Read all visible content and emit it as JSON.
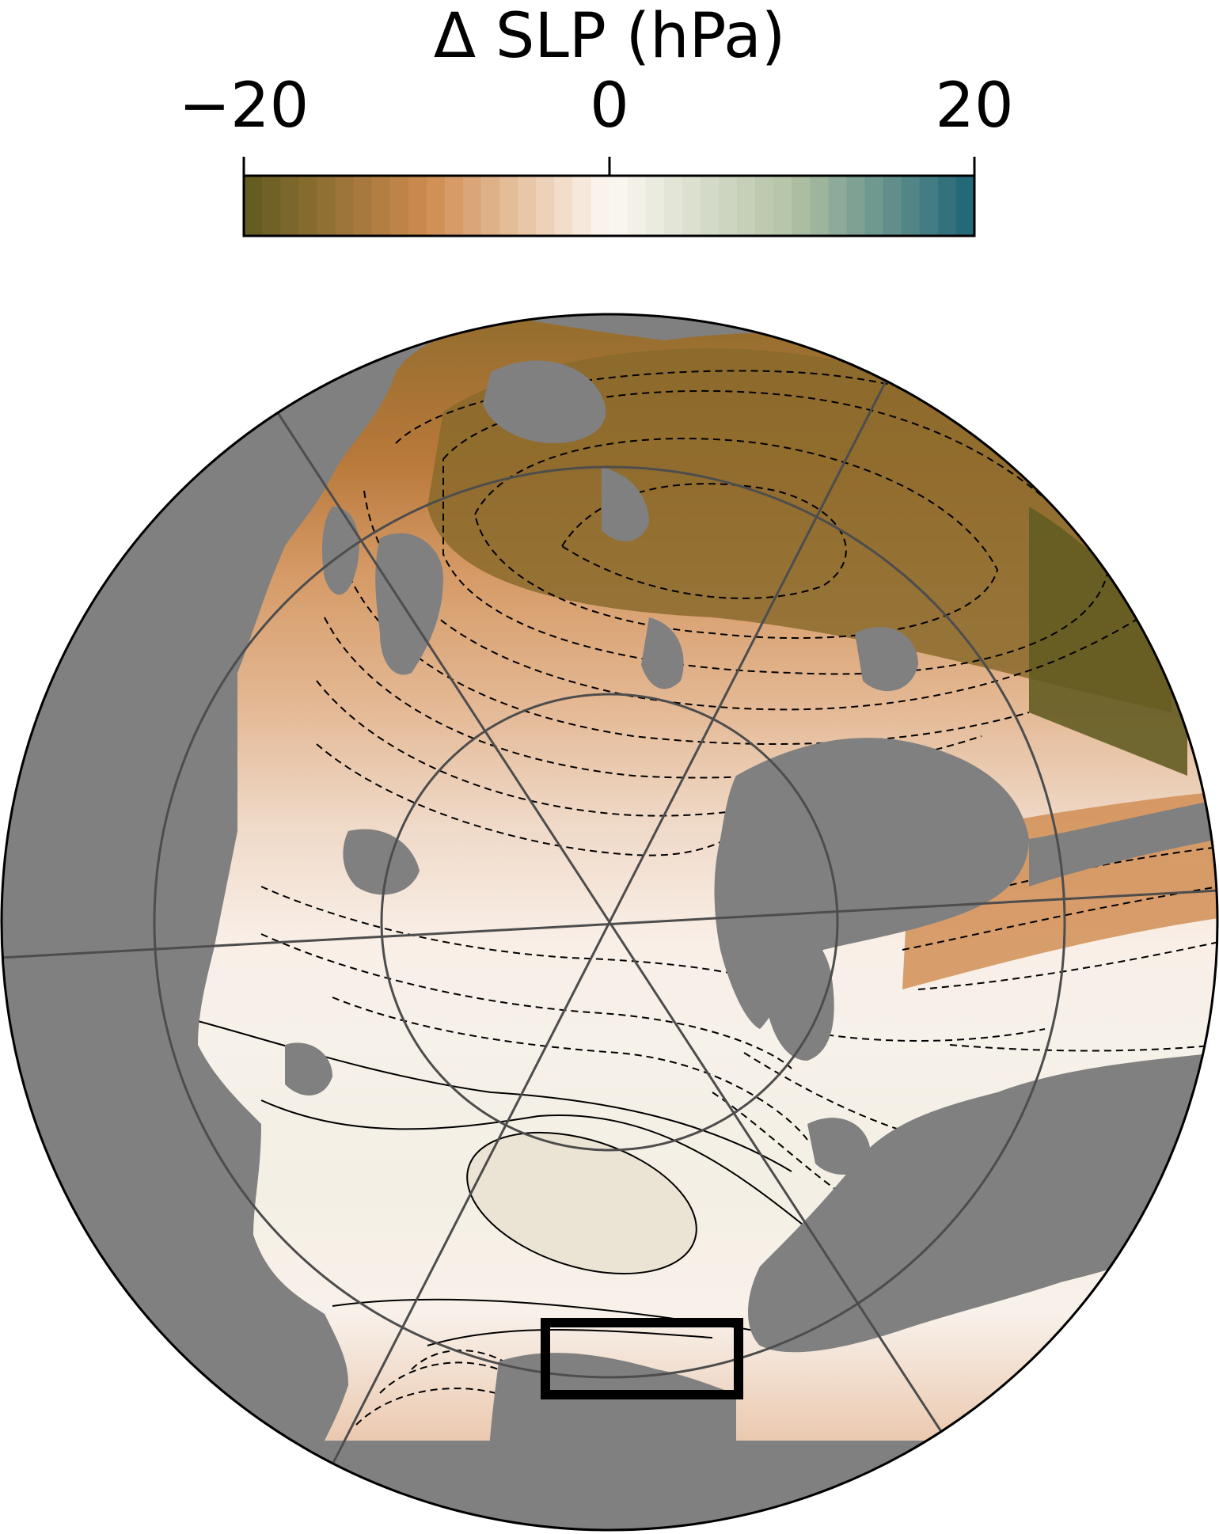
{
  "colorbar": {
    "title": "Δ SLP (hPa)",
    "min": -20,
    "max": 20,
    "ticks": [
      {
        "value": -20,
        "label": "−20"
      },
      {
        "value": 0,
        "label": "0"
      },
      {
        "value": 20,
        "label": "20"
      }
    ],
    "colors": {
      "neg_end": "#5f5a1f",
      "neg_mid": "#cf8a4e",
      "neutral": "#fdf8f3",
      "pos_mid": "#b3c2a4",
      "pos_end": "#1d6476"
    }
  },
  "map": {
    "projection": "north-polar-stereographic",
    "land_color": "#808080",
    "gridline_color": "#4d4d4d",
    "highlight_box": "study-region-box"
  }
}
